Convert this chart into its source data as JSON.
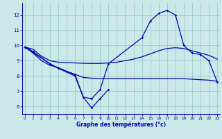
{
  "xlabel": "Graphe des températures (°c)",
  "background_color": "#cce8e8",
  "grid_color": "#99cccc",
  "line_color": "#0000bb",
  "ylim": [
    5.5,
    12.8
  ],
  "yticks": [
    6,
    7,
    8,
    9,
    10,
    11,
    12
  ],
  "xlim": [
    -0.3,
    23.3
  ],
  "xticks": [
    0,
    1,
    2,
    3,
    4,
    5,
    6,
    7,
    8,
    9,
    10,
    11,
    12,
    13,
    14,
    15,
    16,
    17,
    18,
    19,
    20,
    21,
    22,
    23
  ],
  "line1_x": [
    0,
    1,
    3,
    4,
    5,
    6,
    7,
    8,
    9,
    10,
    14,
    15,
    16,
    17,
    18,
    19,
    20,
    21,
    22,
    23
  ],
  "line1_y": [
    9.9,
    9.6,
    8.8,
    8.5,
    8.3,
    8.1,
    6.6,
    6.5,
    7.1,
    8.8,
    10.5,
    11.6,
    12.1,
    12.3,
    12.0,
    10.0,
    9.5,
    9.4,
    9.0,
    7.6
  ],
  "line2_x": [
    0,
    3,
    4,
    6,
    7,
    8,
    9,
    10
  ],
  "line2_y": [
    9.9,
    8.8,
    8.5,
    8.0,
    6.6,
    5.9,
    6.5,
    7.1
  ],
  "smooth_upper_x": [
    0,
    1,
    2,
    3,
    4,
    5,
    6,
    7,
    8,
    9,
    10,
    11,
    12,
    13,
    14,
    15,
    16,
    17,
    18,
    19,
    20,
    21,
    22,
    23
  ],
  "smooth_upper_y": [
    9.9,
    9.75,
    9.3,
    9.0,
    8.9,
    8.87,
    8.85,
    8.83,
    8.82,
    8.82,
    8.85,
    8.9,
    9.0,
    9.1,
    9.25,
    9.45,
    9.65,
    9.8,
    9.85,
    9.8,
    9.65,
    9.5,
    9.35,
    9.1
  ],
  "smooth_lower_x": [
    0,
    1,
    2,
    3,
    4,
    5,
    6,
    7,
    8,
    9,
    10,
    11,
    12,
    13,
    14,
    15,
    16,
    17,
    18,
    19,
    20,
    21,
    22,
    23
  ],
  "smooth_lower_y": [
    9.9,
    9.5,
    9.0,
    8.7,
    8.55,
    8.3,
    8.1,
    7.9,
    7.85,
    7.82,
    7.82,
    7.82,
    7.82,
    7.82,
    7.82,
    7.82,
    7.82,
    7.82,
    7.82,
    7.82,
    7.78,
    7.75,
    7.72,
    7.65
  ]
}
